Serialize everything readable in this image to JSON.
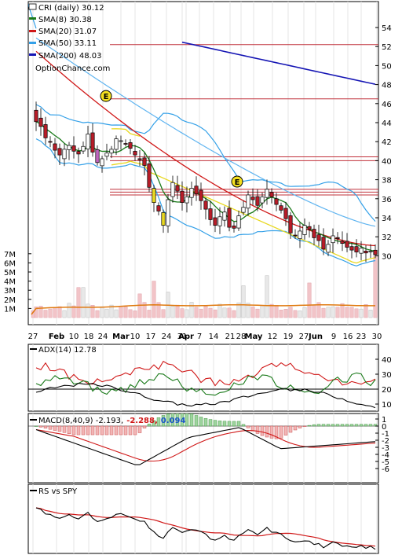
{
  "chart_data": [
    {
      "type": "candlestick",
      "legend": [
        {
          "label": "CRI (daily) 30.12",
          "color": "#ffffff"
        },
        {
          "label": "SMA(8) 30.38",
          "color": "#1a7a1a"
        },
        {
          "label": "SMA(20) 31.07",
          "color": "#d01818"
        },
        {
          "label": "SMA(50) 33.11",
          "color": "#33a0e8"
        },
        {
          "label": "SMA(200) 48.03",
          "color": "#1515b4"
        }
      ],
      "watermark": "OptionChance.com",
      "y_ticks": [
        30,
        32,
        34,
        36,
        38,
        40,
        42,
        44,
        46,
        48,
        50,
        52,
        54
      ],
      "ylim": [
        28.8,
        55.6
      ],
      "volume_ticks": [
        "1M",
        "2M",
        "3M",
        "4M",
        "5M",
        "6M",
        "7M"
      ],
      "x_tick_labels": [
        "27",
        "Feb",
        "10",
        "18",
        "24",
        "Mar",
        "10",
        "17",
        "24",
        "31",
        "Apr",
        "7",
        "14",
        "21",
        "28",
        "May",
        "12",
        "19",
        "27",
        "Jun",
        "9",
        "16",
        "23",
        "30"
      ],
      "horizontal_lines": [
        52.2,
        46.5,
        40.4,
        40.0,
        37.0,
        36.7,
        36.4
      ],
      "earnings_markers": [
        {
          "label": "E",
          "price": 46.8
        },
        {
          "label": "E",
          "price": 37.8
        }
      ],
      "close": [
        44.1,
        43.6,
        42.4,
        42.0,
        41.1,
        40.6,
        41.2,
        41.6,
        41.0,
        40.7,
        41.5,
        42.8,
        40.9,
        39.8,
        40.2,
        40.8,
        41.2,
        42.3,
        42.1,
        41.8,
        41.3,
        40.6,
        40.1,
        39.5,
        37.2,
        35.6,
        34.7,
        33.2,
        35.9,
        37.7,
        36.8,
        35.6,
        36.2,
        37.1,
        36.5,
        35.8,
        34.9,
        33.8,
        33.2,
        34.1,
        34.6,
        33.0,
        32.9,
        34.2,
        35.1,
        36.4,
        35.9,
        35.3,
        36.2,
        37.0,
        36.2,
        35.4,
        34.8,
        33.9,
        32.4,
        32.1,
        32.6,
        33.2,
        32.8,
        31.9,
        31.6,
        30.7,
        31.2,
        32.1,
        31.8,
        31.3,
        30.9,
        30.6,
        30.4,
        30.8,
        30.3,
        30.5,
        30.12
      ]
    },
    {
      "type": "line",
      "title": "ADX(14) 12.78",
      "series": [
        {
          "name": "ADX(14)",
          "color": "#000000"
        },
        {
          "name": "+DI",
          "color": "#1a7a1a"
        },
        {
          "name": "-DI",
          "color": "#d01818"
        }
      ],
      "y_ticks": [
        10,
        20,
        30,
        40
      ],
      "reference_line": 20
    },
    {
      "type": "line",
      "title": "MACD(8,40,9) -2.193,",
      "value_red": "-2.288,",
      "value_blue": "0.094",
      "series": [
        {
          "name": "MACD",
          "color": "#000000"
        },
        {
          "name": "Signal",
          "color": "#d01818"
        },
        {
          "name": "Histogram",
          "color": "#228b22"
        }
      ],
      "y_ticks": [
        1,
        0,
        -1,
        -2,
        -3,
        -4,
        -5,
        -6
      ]
    },
    {
      "type": "line",
      "title": "RS vs SPY",
      "series": [
        {
          "name": "RS",
          "color": "#000000"
        },
        {
          "name": "RS SMA",
          "color": "#d01818"
        }
      ]
    }
  ]
}
